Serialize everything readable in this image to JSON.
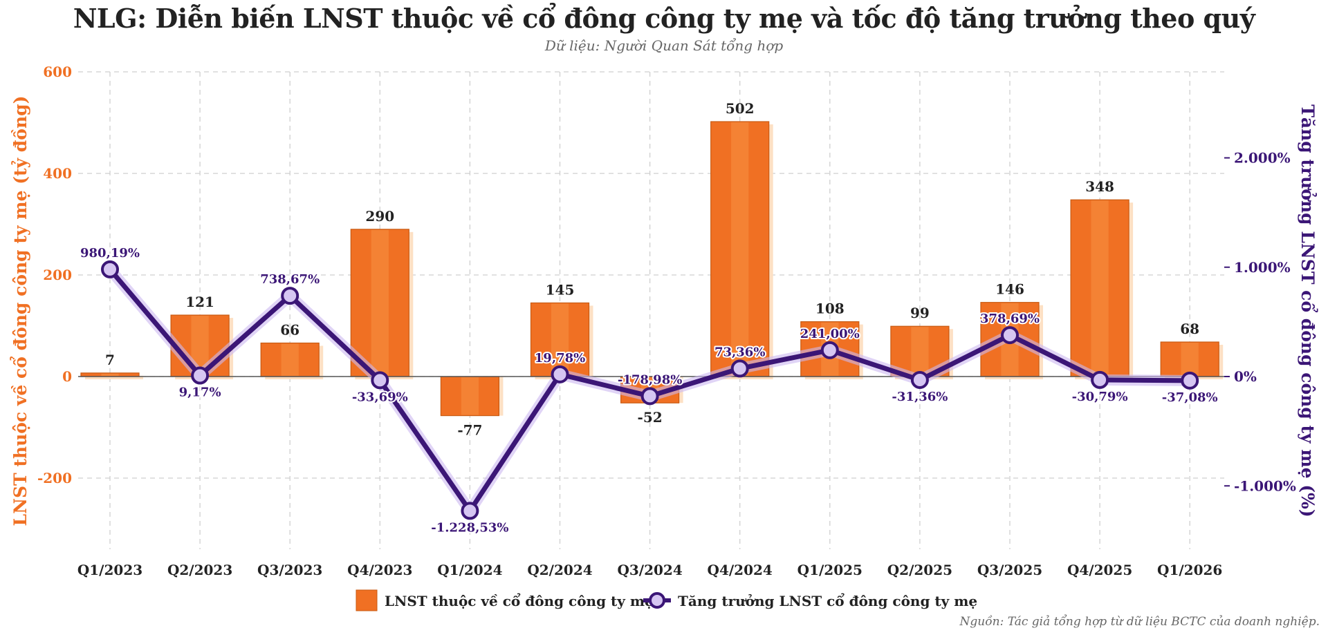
{
  "title": "NLG: Diễn biến LNST thuộc về cổ đông công ty mẹ và tốc độ tăng trưởng theo quý",
  "subtitle": "Dữ liệu: Người Quan Sát tổng hợp",
  "source": "Nguồn: Tác giả tổng hợp từ dữ liệu BCTC của doanh nghiệp.",
  "colors": {
    "bar": "#f07023",
    "bar_light": "#f58a3c",
    "bar_shadow": "#fde0c4",
    "line": "#3b1676",
    "marker_fill": "#d6c6f2",
    "left_axis": "#f07023",
    "right_axis": "#3b1676",
    "grid": "#cfcfcf"
  },
  "chart_data": {
    "type": "bar",
    "categories": [
      "Q1/2023",
      "Q2/2023",
      "Q3/2023",
      "Q4/2023",
      "Q1/2024",
      "Q2/2024",
      "Q3/2024",
      "Q4/2024",
      "Q1/2025",
      "Q2/2025",
      "Q3/2025",
      "Q4/2025",
      "Q1/2026"
    ],
    "series": [
      {
        "name": "LNST thuộc về cổ đông công ty mẹ",
        "type": "bar",
        "axis": "left",
        "values": [
          7,
          121,
          66,
          290,
          -77,
          145,
          -52,
          502,
          108,
          99,
          146,
          348,
          68
        ],
        "labels": [
          "7",
          "121",
          "66",
          "290",
          "-77",
          "145",
          "-52",
          "502",
          "108",
          "99",
          "146",
          "348",
          "68"
        ]
      },
      {
        "name": "Tăng trưởng LNST cổ đông công ty mẹ",
        "type": "line",
        "axis": "right",
        "values": [
          980.19,
          9.17,
          738.67,
          -33.69,
          -1228.53,
          19.78,
          -178.98,
          73.36,
          241.0,
          -31.36,
          378.69,
          -30.79,
          -37.08
        ],
        "labels": [
          "980,19%",
          "9,17%",
          "738,67%",
          "-33,69%",
          "-1.228,53%",
          "19,78%",
          "-178,98%",
          "73,36%",
          "241,00%",
          "-31,36%",
          "378,69%",
          "-30,79%",
          "-37,08%"
        ]
      }
    ],
    "ylabel": "LNST thuộc về cổ đông công ty mẹ (tỷ đồng)",
    "y2label": "Tăng trưởng LNST cổ đông công ty mẹ (%)",
    "ylim": [
      -350,
      600
    ],
    "y2lim": [
      -1600,
      2800
    ],
    "yticks": [
      -200,
      0,
      200,
      400,
      600
    ],
    "ytick_labels": [
      "-200",
      "0",
      "200",
      "400",
      "600"
    ],
    "y2ticks": [
      -1000,
      0,
      1000,
      2000
    ],
    "y2tick_labels": [
      "-1.000%",
      "0%",
      "1.000%",
      "2.000%"
    ],
    "grid": true,
    "legend_position": "bottom-center"
  }
}
